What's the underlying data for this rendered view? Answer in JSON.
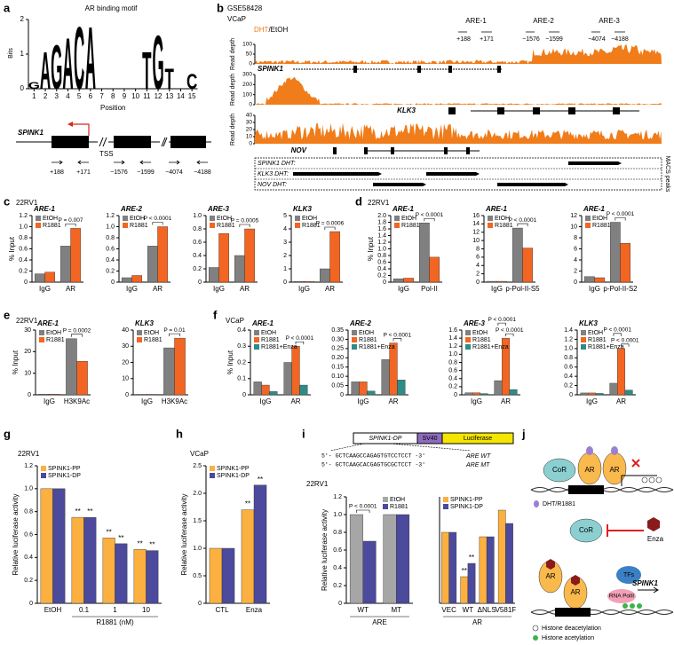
{
  "panel_labels": [
    "a",
    "b",
    "c",
    "d",
    "e",
    "f",
    "g",
    "h",
    "i",
    "j"
  ],
  "cell_lines": {
    "c": "22RV1",
    "d": "22RV1",
    "e": "22RV1",
    "f": "VCaP",
    "g": "22RV1",
    "h": "VCaP",
    "i": "22RV1"
  },
  "motif": {
    "title": "AR binding motif",
    "ylabel": "Bits",
    "xlabel": "Position",
    "ylim": [
      0,
      2
    ],
    "yticks": [
      0,
      1,
      2
    ],
    "xticks": [
      1,
      2,
      3,
      4,
      5,
      6,
      7,
      8,
      9,
      10,
      11,
      12,
      13,
      14,
      15
    ],
    "colors": {
      "A": "#1a9a3c",
      "C": "#2b55a6",
      "G": "#f5a300",
      "T": "#d7261e"
    },
    "letters": [
      {
        "letter": "G",
        "position": 1,
        "bits": 0.2
      },
      {
        "letter": "A",
        "position": 2,
        "bits": 1.1
      },
      {
        "letter": "G",
        "position": 3,
        "bits": 1.3
      },
      {
        "letter": "A",
        "position": 4,
        "bits": 1.5
      },
      {
        "letter": "C",
        "position": 5,
        "bits": 1.85
      },
      {
        "letter": "A",
        "position": 6,
        "bits": 1.85
      },
      {
        "letter": "T",
        "position": 11,
        "bits": 1.1
      },
      {
        "letter": "G",
        "position": 12,
        "bits": 1.6
      },
      {
        "letter": "T",
        "position": 13,
        "bits": 0.6
      },
      {
        "letter": "C",
        "position": 15,
        "bits": 0.45
      }
    ]
  },
  "promoter": {
    "gene": "SPINK1",
    "elements": [
      "ARE-1",
      "ARE-2",
      "ARE-3"
    ],
    "tss": "TSS",
    "coords": [
      "+188",
      "+171",
      "−1576",
      "−1599",
      "−4074",
      "−4188"
    ]
  },
  "tracks_panel": {
    "dataset": "GSE58428",
    "cell": "VCaP",
    "legend": [
      "DHT",
      "/EtOH"
    ],
    "ylabel": "Read depth",
    "ares": [
      "ARE-1",
      "ARE-2",
      "ARE-3"
    ],
    "coords": [
      "+188",
      "+171",
      "−1576",
      "−1599",
      "−4074",
      "−4188"
    ],
    "tracks": [
      {
        "gene": "SPINK1",
        "ylim": [
          0,
          100
        ],
        "yticks": [
          0,
          50,
          100
        ]
      },
      {
        "gene": "KLK3",
        "ylim": [
          0,
          300
        ],
        "yticks": [
          0,
          100,
          200,
          300
        ]
      },
      {
        "gene": "NOV",
        "ylim": [
          0,
          40
        ],
        "yticks": [
          0,
          10,
          20,
          30,
          40
        ]
      }
    ],
    "macs_rows": [
      "SPINK1 DHT:",
      "KLK3 DHT:",
      "NOV DHT:"
    ],
    "macs_label": "MACS peaks"
  },
  "construct": {
    "name": "SPINK1-DP",
    "parts": [
      "SV40",
      "Luciferase"
    ],
    "sequences": [
      {
        "seq": "5′- GCTCAAGCCAGAGTGTCCTCCT -3′",
        "label": "ARE WT"
      },
      {
        "seq": "5′- GCTCAAGCACGAGTGCGCTCCT -3′",
        "label": "ARE MT"
      }
    ]
  },
  "model": {
    "labels": [
      "CoR",
      "AR",
      "AR",
      "ARE",
      "DHT/R1881",
      "CoR",
      "Enza",
      "AR",
      "AR",
      "TFs",
      "RNA PolII",
      "SPINK1",
      "ARE",
      "Histone deacetylation",
      "Histone acetylation"
    ]
  },
  "chart_data": [
    {
      "type": "bar",
      "title": "ARE-1",
      "ylabel": "% Input",
      "categories": [
        "IgG",
        "AR"
      ],
      "series": [
        {
          "name": "EtOH",
          "color": "#808080",
          "values": [
            0.15,
            0.65
          ]
        },
        {
          "name": "R1881",
          "color": "#f26522",
          "values": [
            0.18,
            0.97
          ]
        }
      ],
      "ylim": [
        0,
        1.2
      ],
      "yticks": [
        0,
        0.2,
        0.4,
        0.6,
        0.8,
        {
          "value": 1,
          "label": "1.0"
        },
        1.2
      ],
      "annotations": [
        {
          "text": "P = 0.007",
          "category": 1,
          "series": [
            0,
            1
          ]
        }
      ]
    },
    {
      "type": "bar",
      "title": "ARE-2",
      "categories": [
        "IgG",
        "AR"
      ],
      "series": [
        {
          "name": "EtOH",
          "color": "#808080",
          "values": [
            0.08,
            0.65
          ]
        },
        {
          "name": "R1881",
          "color": "#f26522",
          "values": [
            0.12,
            1.0
          ]
        }
      ],
      "ylim": [
        0,
        1.2
      ],
      "yticks": [
        0,
        0.2,
        0.4,
        0.6,
        0.8,
        {
          "value": 1,
          "label": "1.0"
        },
        1.2
      ],
      "annotations": [
        {
          "text": "P < 0.0001",
          "category": 1,
          "series": [
            0,
            1
          ]
        }
      ]
    },
    {
      "type": "bar",
      "title": "ARE-3",
      "categories": [
        "IgG",
        "AR"
      ],
      "series": [
        {
          "name": "EtOH",
          "color": "#808080",
          "values": [
            0.22,
            0.4
          ]
        },
        {
          "name": "R1881",
          "color": "#f26522",
          "values": [
            0.73,
            0.8
          ]
        }
      ],
      "ylim": [
        0,
        1
      ],
      "yticks": [
        0,
        0.2,
        0.4,
        0.6,
        0.8,
        {
          "value": 1,
          "label": "1.0"
        }
      ],
      "annotations": [
        {
          "text": "P = 0.0005",
          "category": 1,
          "series": [
            0,
            1
          ]
        }
      ]
    },
    {
      "type": "bar",
      "title": "KLK3",
      "categories": [
        "IgG",
        "AR"
      ],
      "series": [
        {
          "name": "EtOH",
          "color": "#808080",
          "values": [
            0.05,
            1.0
          ]
        },
        {
          "name": "R1881",
          "color": "#f26522",
          "values": [
            0.05,
            3.8
          ]
        }
      ],
      "ylim": [
        0,
        5
      ],
      "yticks": [
        0,
        1,
        2,
        3,
        4,
        5
      ],
      "annotations": [
        {
          "text": "P = 0.0006",
          "category": 1,
          "series": [
            0,
            1
          ]
        }
      ]
    },
    {
      "type": "bar",
      "title": "ARE-1",
      "ylabel": "% Input",
      "categories": [
        "IgG",
        "Pol-II"
      ],
      "series": [
        {
          "name": "EtOH",
          "color": "#808080",
          "values": [
            0.1,
            1.78
          ]
        },
        {
          "name": "R1881",
          "color": "#f26522",
          "values": [
            0.12,
            0.75
          ]
        }
      ],
      "ylim": [
        0,
        2
      ],
      "yticks": [
        0,
        0.2,
        0.4,
        0.6,
        0.8,
        {
          "value": 1,
          "label": "1.0"
        },
        1.2,
        1.4,
        1.6,
        1.8,
        {
          "value": 2,
          "label": "2.0"
        }
      ],
      "annotations": [
        {
          "text": "P < 0.0001",
          "category": 1,
          "series": [
            0,
            1
          ]
        }
      ]
    },
    {
      "type": "bar",
      "title": "ARE-1",
      "categories": [
        "IgG",
        "p-Pol-II-S5"
      ],
      "series": [
        {
          "name": "EtOH",
          "color": "#808080",
          "values": [
            0.2,
            13
          ]
        },
        {
          "name": "R1881",
          "color": "#f26522",
          "values": [
            0.2,
            8.2
          ]
        }
      ],
      "ylim": [
        0,
        16
      ],
      "yticks": [
        0,
        2,
        4,
        6,
        8,
        10,
        12,
        14,
        16
      ],
      "annotations": [
        {
          "text": "P < 0.0001",
          "category": 1,
          "series": [
            0,
            1
          ]
        }
      ]
    },
    {
      "type": "bar",
      "title": "ARE-1",
      "categories": [
        "IgG",
        "p-Pol-II-S2"
      ],
      "series": [
        {
          "name": "EtOH",
          "color": "#808080",
          "values": [
            1,
            10.8
          ]
        },
        {
          "name": "R1881",
          "color": "#f26522",
          "values": [
            0.8,
            7
          ]
        }
      ],
      "ylim": [
        0,
        12
      ],
      "yticks": [
        0,
        2,
        4,
        6,
        8,
        10,
        12
      ],
      "annotations": [
        {
          "text": "P < 0.0001",
          "category": 1,
          "series": [
            0,
            1
          ]
        }
      ]
    },
    {
      "type": "bar",
      "title": "ARE-1",
      "ylabel": "% Input",
      "categories": [
        "IgG",
        "H3K9Ac"
      ],
      "series": [
        {
          "name": "EtOH",
          "color": "#808080",
          "values": [
            0.3,
            26
          ]
        },
        {
          "name": "R1881",
          "color": "#f26522",
          "values": [
            0.3,
            15.5
          ]
        }
      ],
      "ylim": [
        0,
        30
      ],
      "yticks": [
        0,
        10,
        20,
        30
      ],
      "annotations": [
        {
          "text": "P = 0.0002",
          "category": 1,
          "series": [
            0,
            1
          ]
        }
      ]
    },
    {
      "type": "bar",
      "title": "KLK3",
      "categories": [
        "IgG",
        "H3K9Ac"
      ],
      "series": [
        {
          "name": "EtOH",
          "color": "#808080",
          "values": [
            0.3,
            29
          ]
        },
        {
          "name": "R1881",
          "color": "#f26522",
          "values": [
            0.3,
            35
          ]
        }
      ],
      "ylim": [
        0,
        40
      ],
      "yticks": [
        0,
        10,
        20,
        30,
        40
      ],
      "annotations": [
        {
          "text": "P = 0.01",
          "category": 1,
          "series": [
            0,
            1
          ]
        }
      ]
    },
    {
      "type": "bar",
      "title": "ARE-1",
      "ylabel": "% Input",
      "categories": [
        "IgG",
        "AR"
      ],
      "series": [
        {
          "name": "EtOH",
          "color": "#808080",
          "values": [
            0.08,
            0.2
          ]
        },
        {
          "name": "R1881",
          "color": "#f26522",
          "values": [
            0.06,
            0.3
          ]
        },
        {
          "name": "R1881+Enza",
          "color": "#2e8b87",
          "values": [
            0.02,
            0.06
          ]
        }
      ],
      "ylim": [
        0,
        0.4
      ],
      "yticks": [
        0,
        0.1,
        0.2,
        0.3,
        0.4
      ],
      "annotations": [
        {
          "text": "P < 0.0001",
          "category": 1,
          "series": [
            1,
            2
          ]
        }
      ]
    },
    {
      "type": "bar",
      "title": "ARE-2",
      "categories": [
        "IgG",
        "AR"
      ],
      "series": [
        {
          "name": "EtOH",
          "color": "#808080",
          "values": [
            0.07,
            0.19
          ]
        },
        {
          "name": "R1881",
          "color": "#f26522",
          "values": [
            0.07,
            0.28
          ]
        },
        {
          "name": "R1881+Enza",
          "color": "#2e8b87",
          "values": [
            0.02,
            0.08
          ]
        }
      ],
      "ylim": [
        0,
        0.35
      ],
      "yticks": [
        0,
        0.05,
        {
          "value": 0.1,
          "label": "0.10"
        },
        0.15,
        {
          "value": 0.2,
          "label": "0.20"
        },
        0.25,
        {
          "value": 0.3,
          "label": "0.30"
        },
        0.35
      ],
      "annotations": [
        {
          "text": "P < 0.0001",
          "category": 1,
          "series": [
            1,
            2
          ]
        }
      ]
    },
    {
      "type": "bar",
      "title": "ARE-3",
      "categories": [
        "IgG",
        "AR"
      ],
      "series": [
        {
          "name": "EtOH",
          "color": "#808080",
          "values": [
            0.05,
            0.35
          ]
        },
        {
          "name": "R1881",
          "color": "#f26522",
          "values": [
            0.05,
            1.4
          ]
        },
        {
          "name": "R1881+Enza",
          "color": "#2e8b87",
          "values": [
            0.03,
            0.13
          ]
        }
      ],
      "ylim": [
        0,
        1.6
      ],
      "yticks": [
        0,
        0.2,
        0.4,
        0.6,
        0.8,
        {
          "value": 1,
          "label": "1.0"
        },
        1.2,
        1.4,
        1.6
      ],
      "annotations": [
        {
          "text": "P < 0.0001",
          "category": 1,
          "series": [
            1,
            2
          ]
        },
        {
          "text": "P < 0.0001",
          "category": 1,
          "series": [
            0,
            1
          ]
        }
      ]
    },
    {
      "type": "bar",
      "title": "KLK3",
      "categories": [
        "IgG",
        "AR"
      ],
      "series": [
        {
          "name": "EtOH",
          "color": "#808080",
          "values": [
            0.04,
            0.25
          ]
        },
        {
          "name": "R1881",
          "color": "#f26522",
          "values": [
            0.04,
            1.0
          ]
        },
        {
          "name": "R1881+Enza",
          "color": "#2e8b87",
          "values": [
            0.03,
            0.1
          ]
        }
      ],
      "ylim": [
        0,
        1.4
      ],
      "yticks": [
        0,
        0.2,
        0.4,
        0.6,
        0.8,
        {
          "value": 1,
          "label": "1.0"
        },
        1.2,
        1.4
      ],
      "annotations": [
        {
          "text": "P < 0.0001",
          "category": 1,
          "series": [
            1,
            2
          ]
        },
        {
          "text": "P < 0.0001",
          "category": 1,
          "series": [
            0,
            1
          ]
        }
      ]
    },
    {
      "type": "bar",
      "ylabel": "Relative luciferase activity",
      "xlabel": "R1881 (nM)",
      "categories": [
        "EtOH",
        "0.1",
        "1",
        "10"
      ],
      "series": [
        {
          "name": "SPINK1-PP",
          "color": "#fbb040",
          "values": [
            1,
            0.75,
            0.57,
            0.47
          ],
          "labels": [
            null,
            "**",
            "**",
            "**"
          ]
        },
        {
          "name": "SPINK1-DP",
          "color": "#4b4a9c",
          "values": [
            1,
            0.75,
            0.52,
            0.46
          ],
          "labels": [
            null,
            "**",
            "**",
            "**"
          ]
        }
      ],
      "ylim": [
        0,
        1.2
      ],
      "yticks": [
        0,
        0.2,
        0.4,
        0.6,
        0.8,
        {
          "value": 1,
          "label": "1.0"
        },
        1.2
      ]
    },
    {
      "type": "bar",
      "ylabel": "Relative luciferase activity",
      "categories": [
        "CTL",
        "Enza"
      ],
      "series": [
        {
          "name": "SPINK1-PP",
          "color": "#fbb040",
          "values": [
            1,
            1.7
          ],
          "labels": [
            null,
            "**"
          ]
        },
        {
          "name": "SPINK1-DP",
          "color": "#4b4a9c",
          "values": [
            1,
            2.15
          ],
          "labels": [
            null,
            "**"
          ]
        }
      ],
      "ylim": [
        0,
        2.5
      ],
      "yticks": [
        0,
        0.5,
        {
          "value": 1,
          "label": "1.0"
        },
        1.5,
        {
          "value": 2,
          "label": "2.0"
        },
        2.5
      ]
    },
    {
      "type": "bar",
      "ylabel": "Relative luciferase activity",
      "xlabel": "ARE",
      "categories": [
        "WT",
        "MT"
      ],
      "legend": "upper right",
      "series": [
        {
          "name": "EtOH",
          "color": "#a6a6a6",
          "values": [
            1,
            1
          ]
        },
        {
          "name": "R1881",
          "color": "#4b4a9c",
          "values": [
            0.7,
            1
          ]
        }
      ],
      "ylim": [
        0,
        1.2
      ],
      "yticks": [
        0,
        0.2,
        0.4,
        0.6,
        0.8,
        {
          "value": 1,
          "label": "1.0"
        },
        1.2
      ],
      "annotations": [
        {
          "text": "P < 0.0001",
          "category": 0,
          "series": [
            0,
            1
          ]
        }
      ]
    },
    {
      "type": "bar",
      "xlabel": "AR",
      "categories": [
        "VEC",
        "WT",
        "ΔNLS",
        "V581F"
      ],
      "series": [
        {
          "name": "SPINK1-PP",
          "color": "#fbb040",
          "values": [
            0.8,
            0.3,
            0.75,
            1.05
          ],
          "labels": [
            null,
            "**",
            null,
            null
          ]
        },
        {
          "name": "SPINK1-DP",
          "color": "#4b4a9c",
          "values": [
            0.8,
            0.45,
            0.75,
            0.9
          ],
          "labels": [
            null,
            "**",
            null,
            null
          ]
        }
      ],
      "ylim": [
        0,
        1.2
      ]
    }
  ]
}
